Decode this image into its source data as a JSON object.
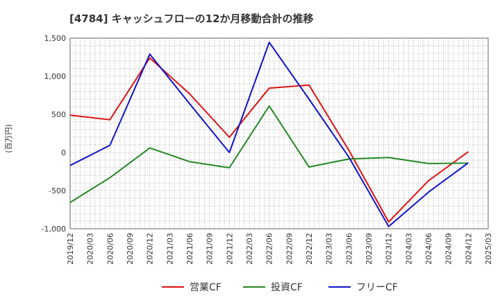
{
  "chart_data": {
    "type": "line",
    "title": "[4784]  キャッシュフローの12か月移動合計の推移",
    "ylabel": "(百万円)",
    "xlabel": "",
    "ylim": [
      -1000,
      1500
    ],
    "yticks": [
      -1000,
      -500,
      0,
      500,
      1000,
      1500
    ],
    "ytick_labels": [
      "-1,000",
      "-500",
      "0",
      "500",
      "1,000",
      "1,500"
    ],
    "x_ticks": [
      "2019/12",
      "2020/03",
      "2020/06",
      "2020/09",
      "2020/12",
      "2021/03",
      "2021/06",
      "2021/09",
      "2021/12",
      "2022/03",
      "2022/06",
      "2022/09",
      "2022/12",
      "2023/03",
      "2023/06",
      "2023/09",
      "2023/12",
      "2024/03",
      "2024/06",
      "2024/09",
      "2024/12",
      "2025/03"
    ],
    "grid": true,
    "legend_position": "bottom",
    "series": [
      {
        "name": "営業CF",
        "color": "#dd1111",
        "x": [
          "2019/12",
          "2020/06",
          "2020/12",
          "2021/06",
          "2021/12",
          "2022/06",
          "2022/12",
          "2023/06",
          "2023/12",
          "2024/06",
          "2024/12"
        ],
        "values": [
          490,
          430,
          1240,
          770,
          200,
          845,
          885,
          30,
          -910,
          -370,
          10
        ]
      },
      {
        "name": "投資CF",
        "color": "#228822",
        "x": [
          "2019/12",
          "2020/06",
          "2020/12",
          "2021/06",
          "2021/12",
          "2022/06",
          "2022/12",
          "2023/06",
          "2023/12",
          "2024/06",
          "2024/12"
        ],
        "values": [
          -655,
          -330,
          60,
          -120,
          -200,
          610,
          -190,
          -85,
          -65,
          -145,
          -140
        ]
      },
      {
        "name": "フリーCF",
        "color": "#1111cc",
        "x": [
          "2019/12",
          "2020/06",
          "2020/12",
          "2021/06",
          "2021/12",
          "2022/06",
          "2022/12",
          "2023/06",
          "2023/12",
          "2024/06",
          "2024/12"
        ],
        "values": [
          -170,
          95,
          1290,
          640,
          0,
          1445,
          700,
          -60,
          -970,
          -520,
          -135
        ]
      }
    ]
  }
}
